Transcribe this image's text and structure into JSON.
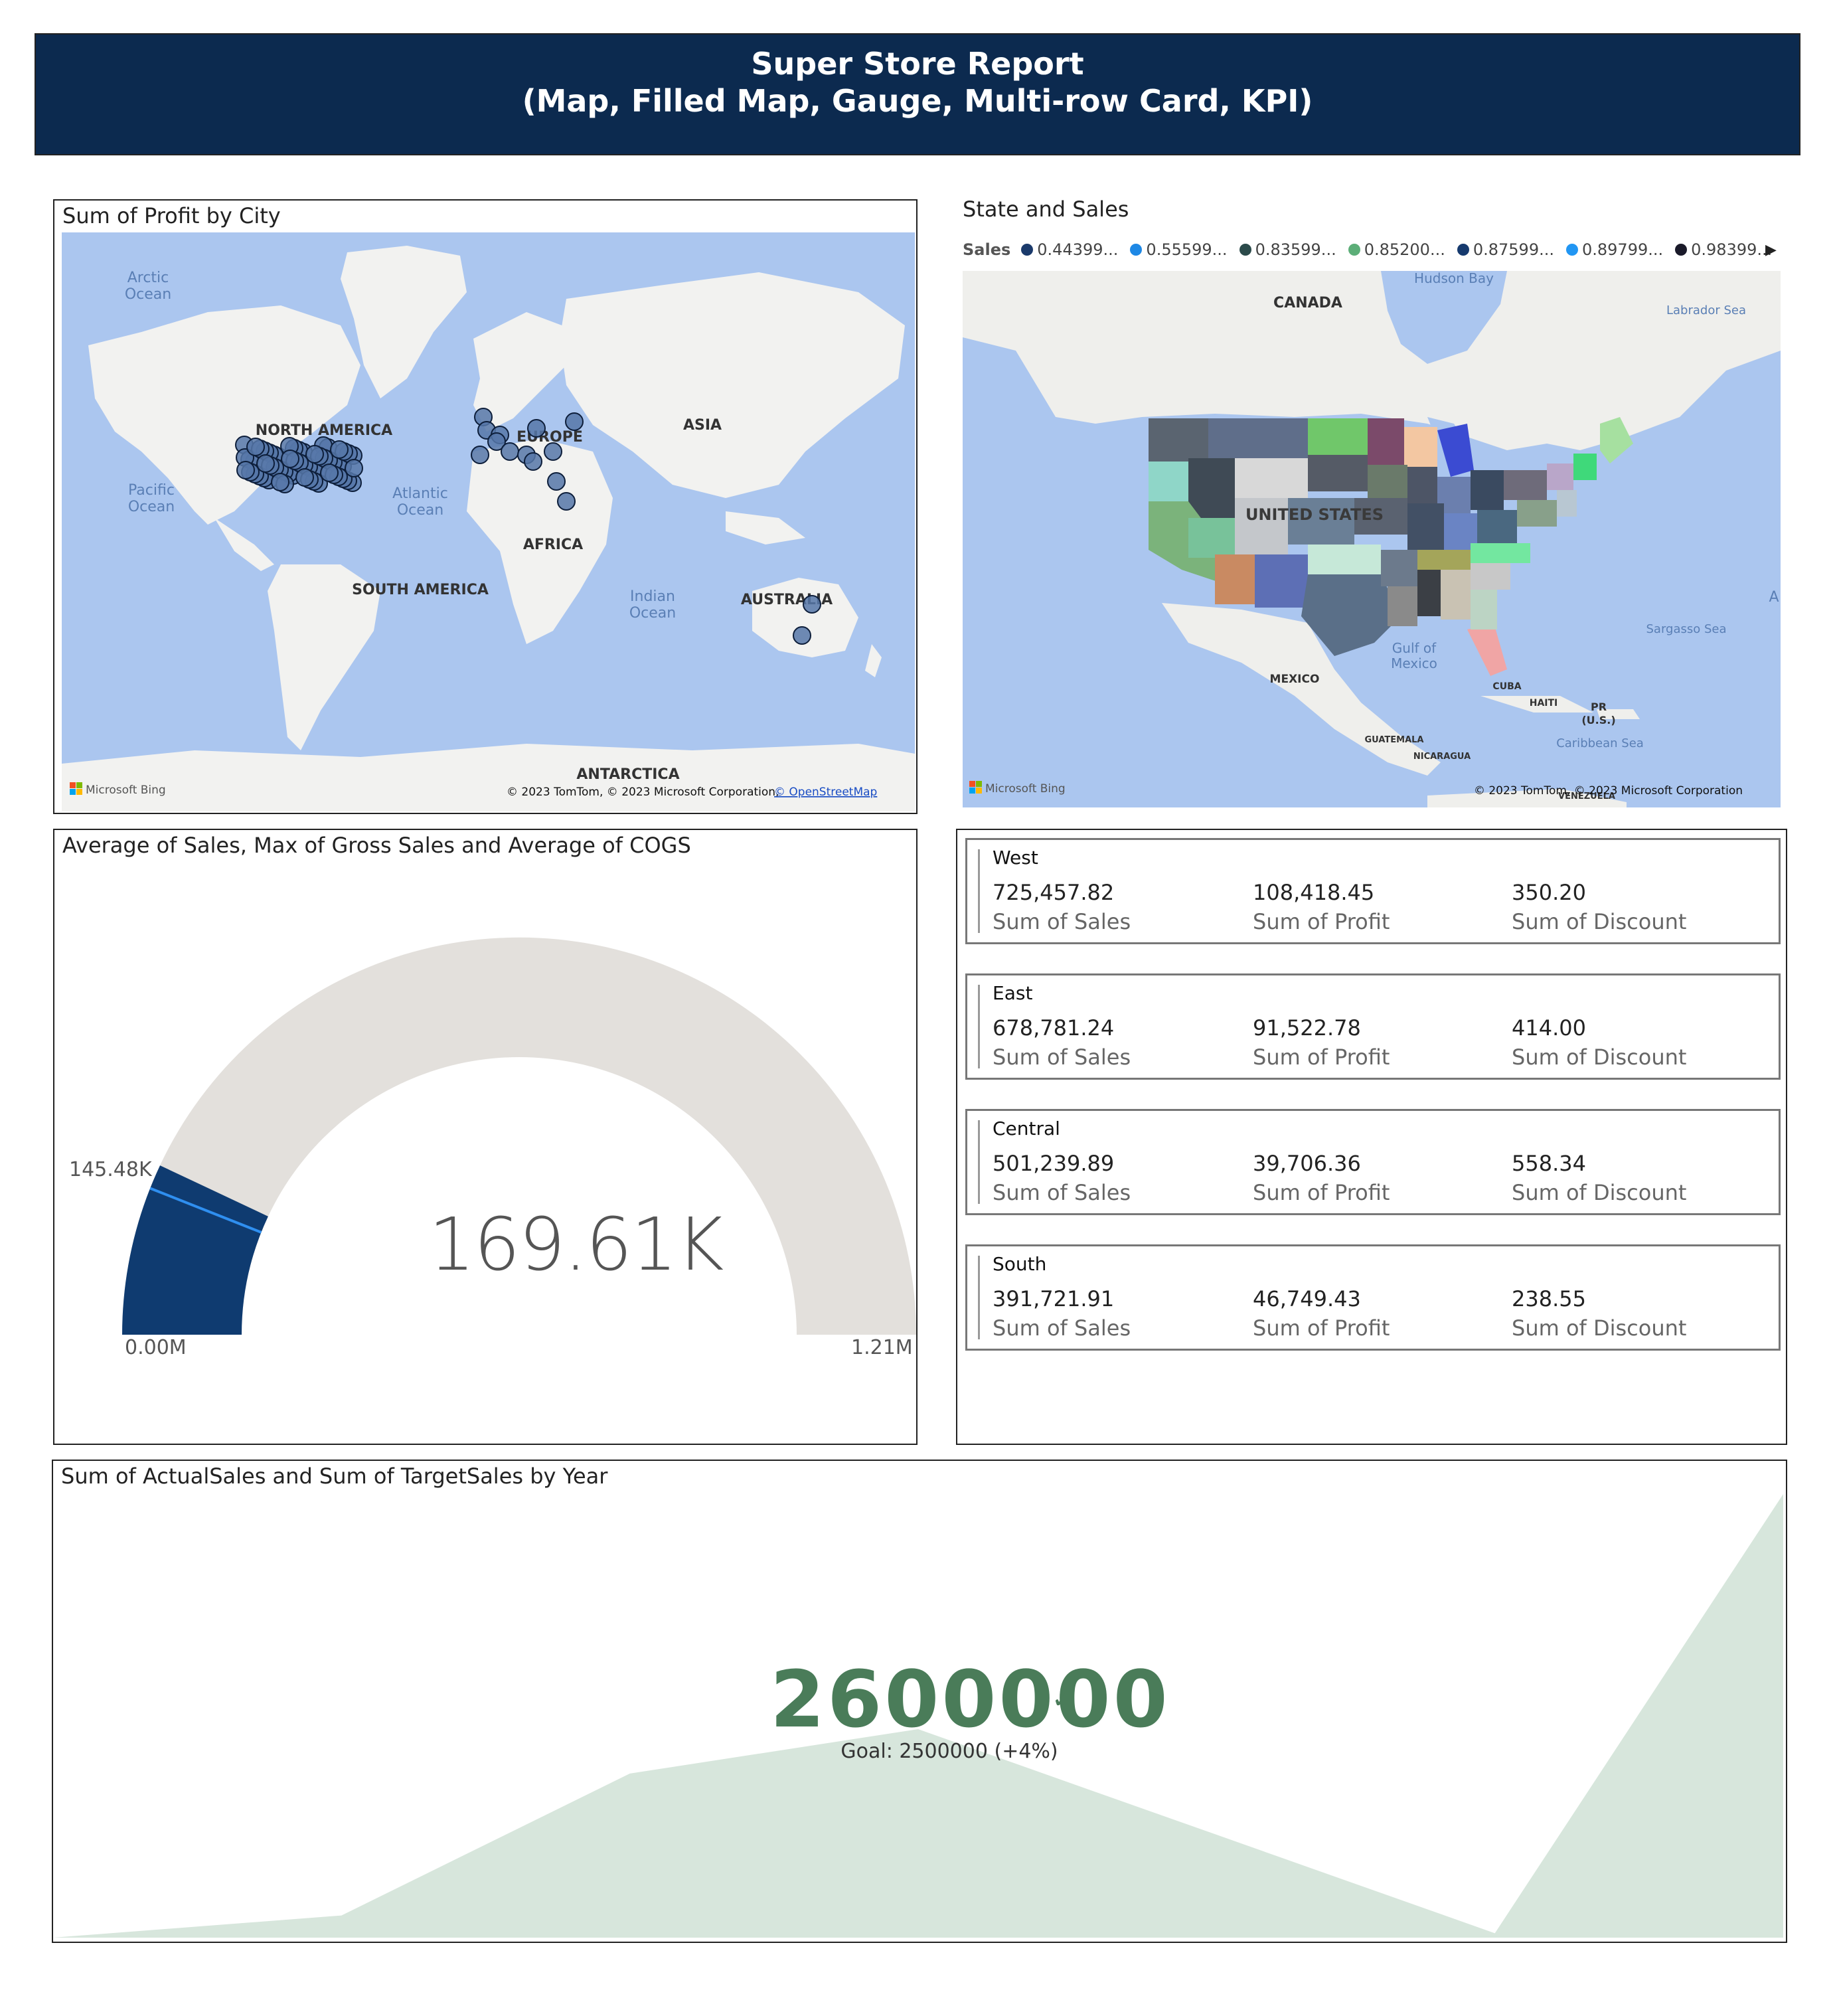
{
  "header": {
    "title": "Super Store Report",
    "subtitle": "(Map, Filled Map, Gauge,  Multi-row Card, KPI)"
  },
  "map_profit": {
    "title": "Sum of Profit by City",
    "labels": {
      "arctic": "Arctic",
      "arctic2": "Ocean",
      "pacific": "Pacific",
      "pacific2": "Ocean",
      "atlantic": "Atlantic",
      "atlantic2": "Ocean",
      "indian": "Indian",
      "indian2": "Ocean",
      "north_america": "NORTH AMERICA",
      "south_america": "SOUTH AMERICA",
      "europe": "EUROPE",
      "asia": "ASIA",
      "africa": "AFRICA",
      "australia": "AUSTRALIA",
      "antarctica": "ANTARCTICA"
    },
    "attribution": "© 2023 TomTom, © 2023 Microsoft Corporation,",
    "attribution_link": "© OpenStreetMap",
    "bing": "Microsoft Bing"
  },
  "map_sales": {
    "title": "State and Sales",
    "legend_title": "Sales",
    "legend": [
      {
        "label": "0.44399...",
        "color": "#1b3a6b"
      },
      {
        "label": "0.55599...",
        "color": "#1e88e5"
      },
      {
        "label": "0.83599...",
        "color": "#2b4a4a"
      },
      {
        "label": "0.85200...",
        "color": "#5cae78"
      },
      {
        "label": "0.87599...",
        "color": "#163a6e"
      },
      {
        "label": "0.89799...",
        "color": "#2196f3"
      },
      {
        "label": "0.98399...",
        "color": "#1a1a2a"
      }
    ],
    "labels": {
      "hudson": "Hudson Bay",
      "canada": "CANADA",
      "labrador": "Labrador Sea",
      "us": "UNITED STATES",
      "gulf": "Gulf of",
      "gulf2": "Mexico",
      "mexico": "MEXICO",
      "sargasso": "Sargasso Sea",
      "cuba": "CUBA",
      "haiti": "HAITI",
      "pr": "PR",
      "pr2": "(U.S.)",
      "caribbean": "Caribbean Sea",
      "guatemala": "GUATEMALA",
      "nicaragua": "NICARAGUA",
      "venezuela": "VENEZUELA",
      "a": "A"
    },
    "attribution": "© 2023 TomTom, © 2023 Microsoft Corporation",
    "bing": "Microsoft Bing"
  },
  "gauge": {
    "title": "Average of Sales, Max of Gross Sales and Average of COGS",
    "value_label": "169.61K",
    "min_label": "0.00M",
    "max_label": "1.21M",
    "target_label": "145.48K",
    "value": 169610,
    "min": 0,
    "max": 1210000,
    "target": 145480,
    "colors": {
      "fill": "#0f3b70",
      "track": "#e3e0dc",
      "target": "#2f8ff0"
    }
  },
  "cards": [
    {
      "region": "West",
      "sales": "725,457.82",
      "profit": "108,418.45",
      "discount": "350.20"
    },
    {
      "region": "East",
      "sales": "678,781.24",
      "profit": "91,522.78",
      "discount": "414.00"
    },
    {
      "region": "Central",
      "sales": "501,239.89",
      "profit": "39,706.36",
      "discount": "558.34"
    },
    {
      "region": "South",
      "sales": "391,721.91",
      "profit": "46,749.43",
      "discount": "238.55"
    }
  ],
  "card_labels": {
    "sales": "Sum of Sales",
    "profit": "Sum of Profit",
    "discount": "Sum of Discount"
  },
  "kpi": {
    "title": "Sum of ActualSales and Sum of TargetSales by Year",
    "value": "2600000",
    "goal": "Goal: 2500000 (+4%)",
    "color": "#4a7c59",
    "trend_color": "#d7e6dc"
  },
  "chart_data": {
    "type": "area",
    "title": "Sum of ActualSales and Sum of TargetSales by Year",
    "series": [
      {
        "values": [
          0.0,
          0.05,
          0.37,
          0.47,
          0.24,
          0.01,
          1.0
        ]
      }
    ],
    "ylim": [
      0,
      1
    ]
  }
}
